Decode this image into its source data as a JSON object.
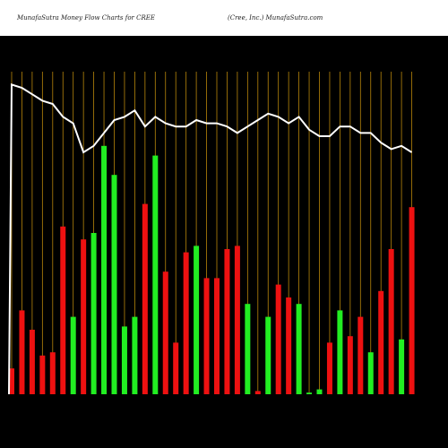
{
  "header": {
    "title_left": "MunafaSutra  Money Flow  Charts for CREE",
    "title_right": "(Cree,  Inc.) MunafaSutra.com"
  },
  "chart_data": {
    "type": "bar",
    "ylim": [
      0,
      100
    ],
    "values": [
      8,
      26,
      20,
      12,
      13,
      52,
      24,
      48,
      50,
      77,
      68,
      21,
      24,
      59,
      74,
      38,
      16,
      44,
      46,
      36,
      36,
      45,
      46,
      28,
      1,
      24,
      34,
      30,
      28,
      0.5,
      1.5,
      16,
      26,
      18,
      24,
      13,
      32,
      45,
      17,
      58
    ],
    "directions": [
      "red",
      "red",
      "red",
      "red",
      "red",
      "red",
      "green",
      "red",
      "green",
      "green",
      "green",
      "green",
      "green",
      "red",
      "green",
      "red",
      "red",
      "red",
      "green",
      "red",
      "red",
      "red",
      "red",
      "green",
      "red",
      "green",
      "red",
      "red",
      "green",
      "green",
      "green",
      "red",
      "green",
      "red",
      "red",
      "green",
      "red",
      "red",
      "green",
      "red"
    ],
    "line": [
      96,
      95,
      93,
      91,
      90,
      86,
      84,
      75,
      77,
      81,
      85,
      86,
      88,
      83,
      86,
      84,
      83,
      83,
      85,
      84,
      84,
      83,
      81,
      83,
      85,
      87,
      86,
      84,
      86,
      82,
      80,
      80,
      83,
      83,
      81,
      81,
      78,
      76,
      77,
      75
    ],
    "colors": {
      "up": "#22ee22",
      "down": "#ee1111",
      "line": "#ffffff",
      "grid": "#b8860b",
      "background": "#000000",
      "label": "#ffffff"
    }
  }
}
